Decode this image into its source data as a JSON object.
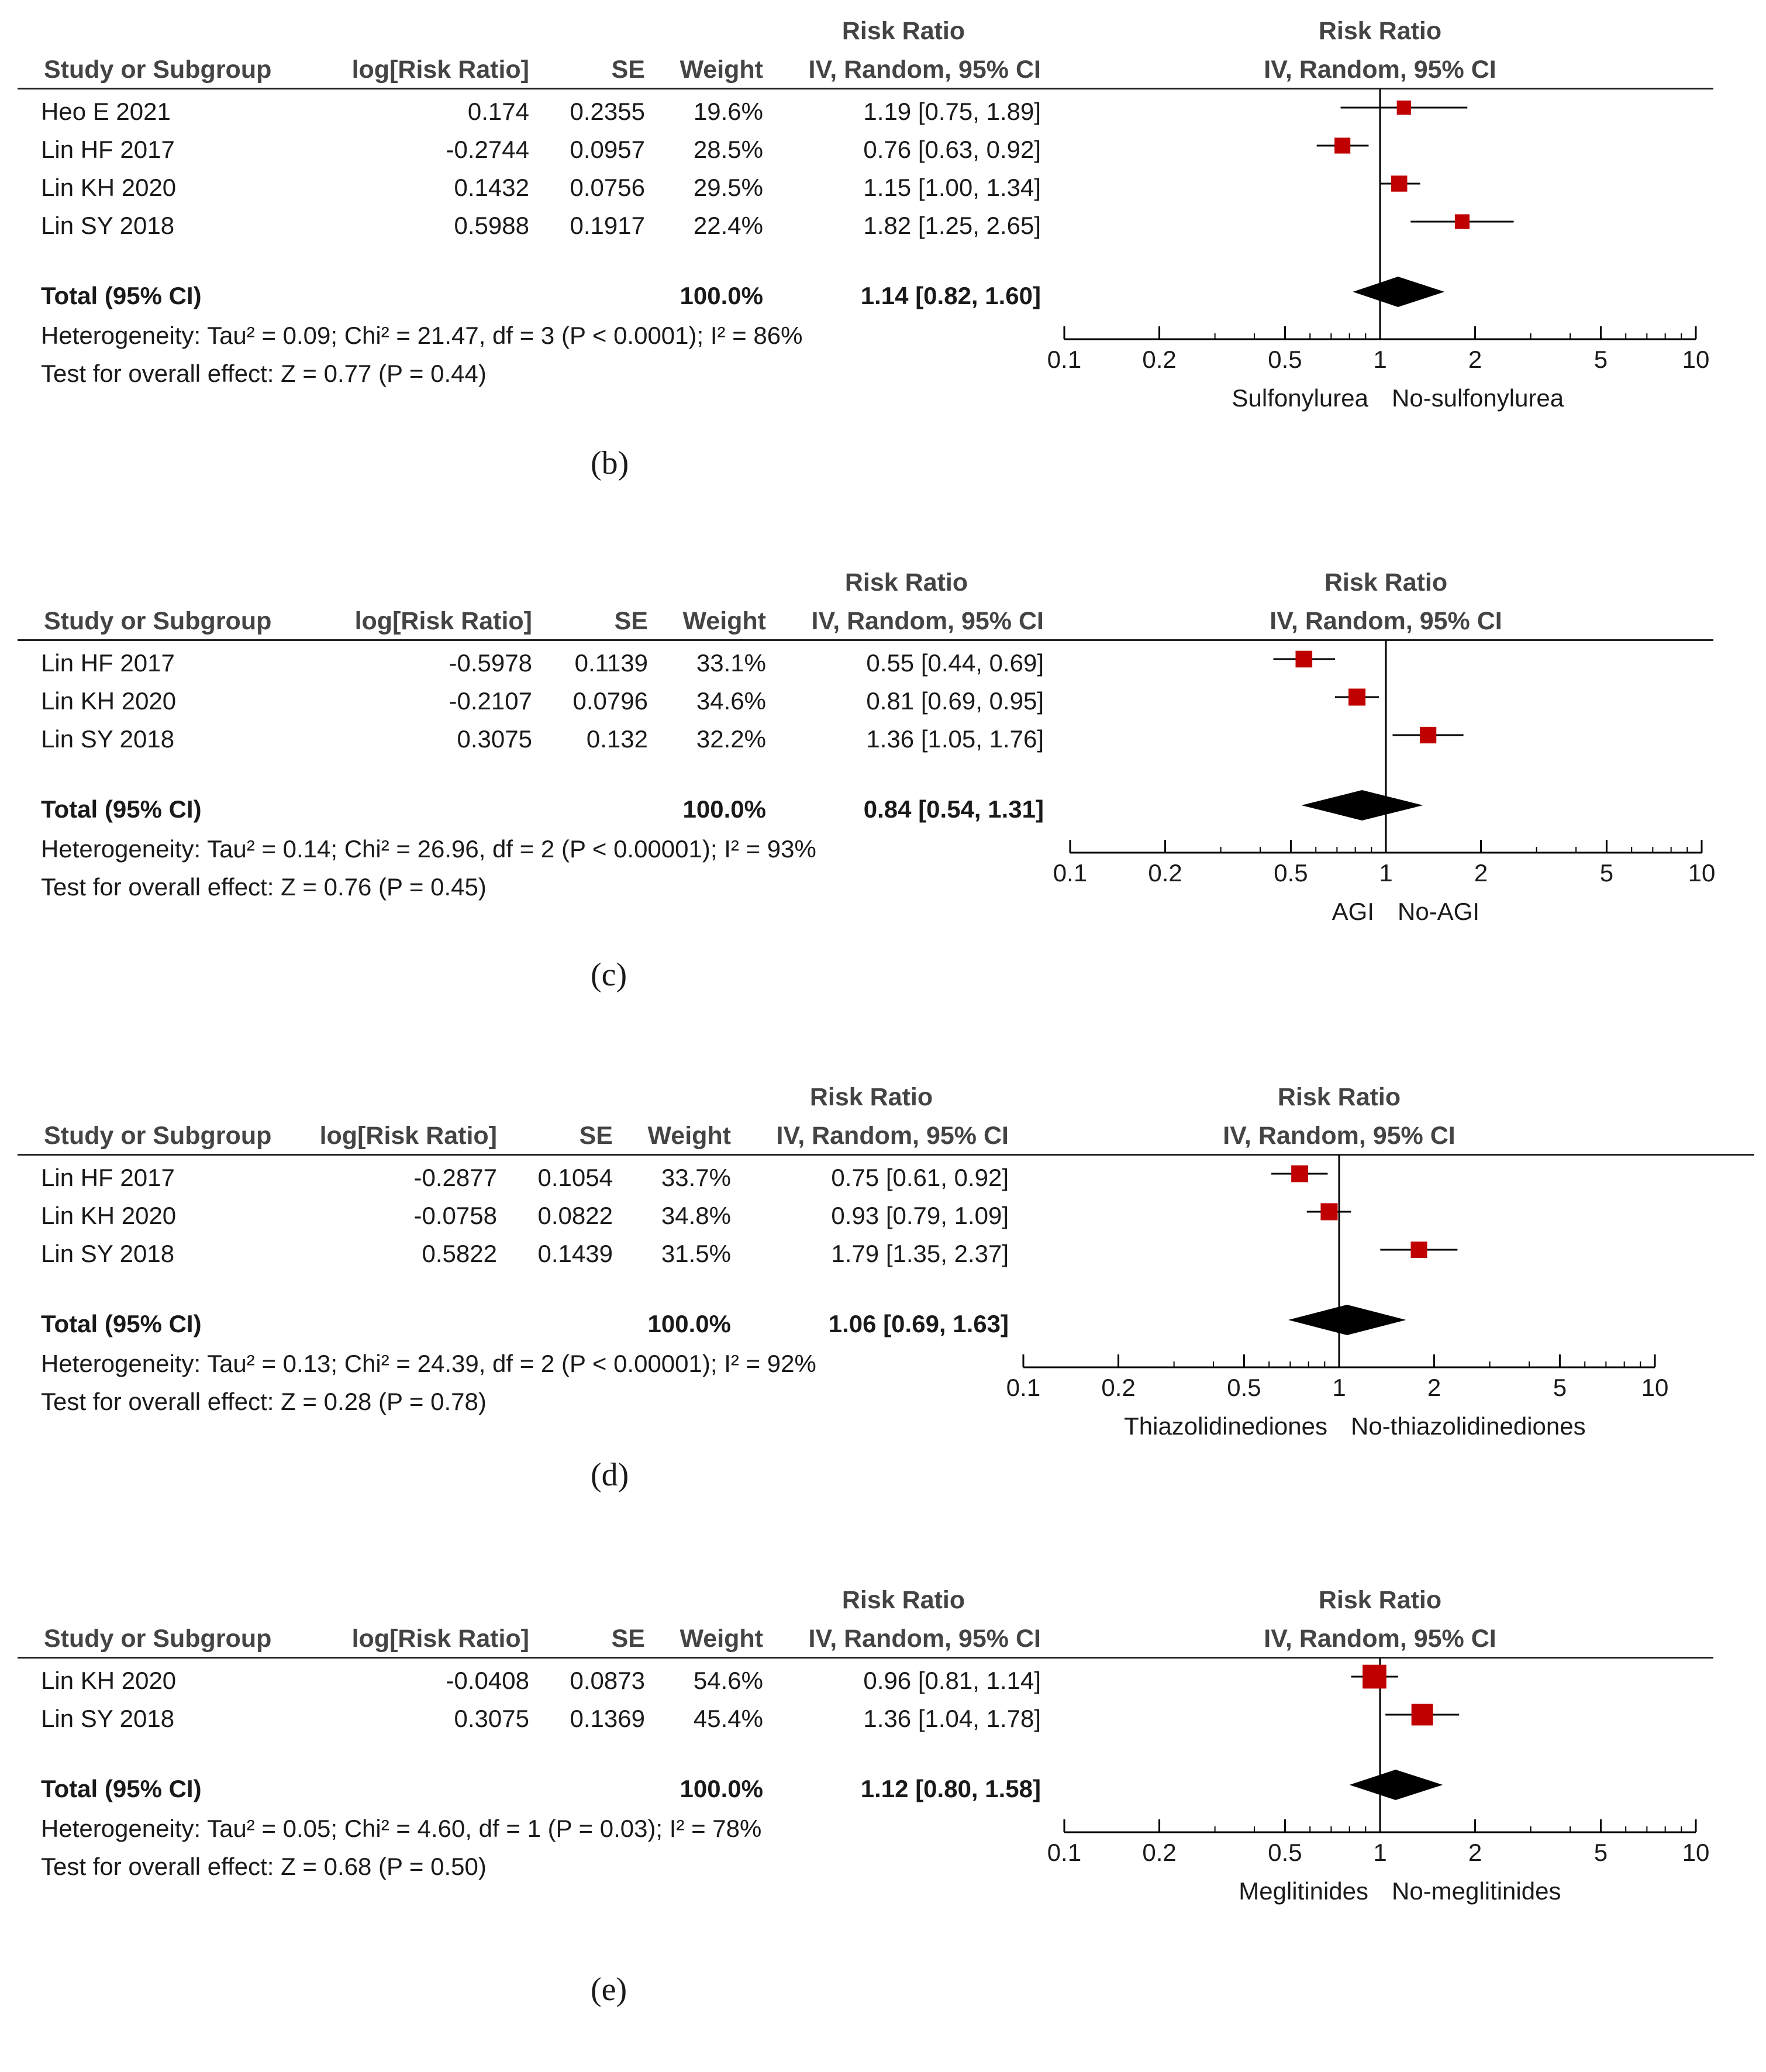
{
  "headers": {
    "study": "Study or Subgroup",
    "logrr": "log[Risk Ratio]",
    "se": "SE",
    "weight": "Weight",
    "rr_title": "Risk Ratio",
    "rr_method": "IV, Random, 95% CI",
    "plot_title": "Risk Ratio",
    "plot_method": "IV, Random, 95% CI"
  },
  "colors": {
    "marker": "#c00000",
    "diamond": "#000000",
    "text": "#1a1a1a",
    "header": "#444444"
  },
  "chart_data": [
    {
      "type": "forest",
      "label": "(b)",
      "xscale": "log",
      "xlim": [
        0.1,
        10
      ],
      "ticks": [
        {
          "v": 0.1,
          "t": "0.1"
        },
        {
          "v": 0.2,
          "t": "0.2"
        },
        {
          "v": 0.5,
          "t": "0.5"
        },
        {
          "v": 1,
          "t": "1"
        },
        {
          "v": 2,
          "t": "2"
        },
        {
          "v": 5,
          "t": "5"
        },
        {
          "v": 10,
          "t": "10"
        }
      ],
      "favours_left": "Sulfonylurea",
      "favours_right": "No-sulfonylurea",
      "studies": [
        {
          "name": "Heo E 2021",
          "logrr": "0.174",
          "se": "0.2355",
          "weight": "19.6%",
          "ci_text": "1.19 [0.75, 1.89]",
          "rr": 1.19,
          "lo": 0.75,
          "hi": 1.89,
          "w": 19.6
        },
        {
          "name": "Lin HF 2017",
          "logrr": "-0.2744",
          "se": "0.0957",
          "weight": "28.5%",
          "ci_text": "0.76 [0.63, 0.92]",
          "rr": 0.76,
          "lo": 0.63,
          "hi": 0.92,
          "w": 28.5
        },
        {
          "name": "Lin KH 2020",
          "logrr": "0.1432",
          "se": "0.0756",
          "weight": "29.5%",
          "ci_text": "1.15 [1.00, 1.34]",
          "rr": 1.15,
          "lo": 1.0,
          "hi": 1.34,
          "w": 29.5
        },
        {
          "name": "Lin SY 2018",
          "logrr": "0.5988",
          "se": "0.1917",
          "weight": "22.4%",
          "ci_text": "1.82 [1.25, 2.65]",
          "rr": 1.82,
          "lo": 1.25,
          "hi": 2.65,
          "w": 22.4
        }
      ],
      "total": {
        "label": "Total (95% CI)",
        "weight": "100.0%",
        "ci_text": "1.14 [0.82, 1.60]",
        "rr": 1.14,
        "lo": 0.82,
        "hi": 1.6
      },
      "heterogeneity": "Heterogeneity: Tau² = 0.09; Chi² = 21.47, df = 3 (P < 0.0001); I² = 86%",
      "overall": "Test for overall effect: Z = 0.77 (P = 0.44)"
    },
    {
      "type": "forest",
      "label": "(c)",
      "xscale": "log",
      "xlim": [
        0.1,
        10
      ],
      "ticks": [
        {
          "v": 0.1,
          "t": "0.1"
        },
        {
          "v": 0.2,
          "t": "0.2"
        },
        {
          "v": 0.5,
          "t": "0.5"
        },
        {
          "v": 1,
          "t": "1"
        },
        {
          "v": 2,
          "t": "2"
        },
        {
          "v": 5,
          "t": "5"
        },
        {
          "v": 10,
          "t": "10"
        }
      ],
      "favours_left": "AGI",
      "favours_right": "No-AGI",
      "studies": [
        {
          "name": "Lin HF 2017",
          "logrr": "-0.5978",
          "se": "0.1139",
          "weight": "33.1%",
          "ci_text": "0.55 [0.44, 0.69]",
          "rr": 0.55,
          "lo": 0.44,
          "hi": 0.69,
          "w": 33.1
        },
        {
          "name": "Lin KH 2020",
          "logrr": "-0.2107",
          "se": "0.0796",
          "weight": "34.6%",
          "ci_text": "0.81 [0.69, 0.95]",
          "rr": 0.81,
          "lo": 0.69,
          "hi": 0.95,
          "w": 34.6
        },
        {
          "name": "Lin SY 2018",
          "logrr": "0.3075",
          "se": "0.132",
          "weight": "32.2%",
          "ci_text": "1.36 [1.05, 1.76]",
          "rr": 1.36,
          "lo": 1.05,
          "hi": 1.76,
          "w": 32.2
        }
      ],
      "total": {
        "label": "Total (95% CI)",
        "weight": "100.0%",
        "ci_text": "0.84 [0.54, 1.31]",
        "rr": 0.84,
        "lo": 0.54,
        "hi": 1.31
      },
      "heterogeneity": "Heterogeneity: Tau² = 0.14; Chi² = 26.96, df = 2 (P < 0.00001); I² = 93%",
      "overall": "Test for overall effect: Z = 0.76 (P = 0.45)"
    },
    {
      "type": "forest",
      "label": "(d)",
      "xscale": "log",
      "xlim": [
        0.1,
        10
      ],
      "ticks": [
        {
          "v": 0.1,
          "t": "0.1"
        },
        {
          "v": 0.2,
          "t": "0.2"
        },
        {
          "v": 0.5,
          "t": "0.5"
        },
        {
          "v": 1,
          "t": "1"
        },
        {
          "v": 2,
          "t": "2"
        },
        {
          "v": 5,
          "t": "5"
        },
        {
          "v": 10,
          "t": "10"
        }
      ],
      "favours_left": "Thiazolidinediones",
      "favours_right": "No-thiazolidinediones",
      "studies": [
        {
          "name": "Lin HF 2017",
          "logrr": "-0.2877",
          "se": "0.1054",
          "weight": "33.7%",
          "ci_text": "0.75 [0.61, 0.92]",
          "rr": 0.75,
          "lo": 0.61,
          "hi": 0.92,
          "w": 33.7
        },
        {
          "name": "Lin KH 2020",
          "logrr": "-0.0758",
          "se": "0.0822",
          "weight": "34.8%",
          "ci_text": "0.93 [0.79, 1.09]",
          "rr": 0.93,
          "lo": 0.79,
          "hi": 1.09,
          "w": 34.8
        },
        {
          "name": "Lin SY 2018",
          "logrr": "0.5822",
          "se": "0.1439",
          "weight": "31.5%",
          "ci_text": "1.79 [1.35, 2.37]",
          "rr": 1.79,
          "lo": 1.35,
          "hi": 2.37,
          "w": 31.5
        }
      ],
      "total": {
        "label": "Total (95% CI)",
        "weight": "100.0%",
        "ci_text": "1.06 [0.69, 1.63]",
        "rr": 1.06,
        "lo": 0.69,
        "hi": 1.63
      },
      "heterogeneity": "Heterogeneity: Tau² = 0.13; Chi² = 24.39, df = 2 (P < 0.00001); I² = 92%",
      "overall": "Test for overall effect: Z = 0.28 (P = 0.78)"
    },
    {
      "type": "forest",
      "label": "(e)",
      "xscale": "log",
      "xlim": [
        0.1,
        10
      ],
      "ticks": [
        {
          "v": 0.1,
          "t": "0.1"
        },
        {
          "v": 0.2,
          "t": "0.2"
        },
        {
          "v": 0.5,
          "t": "0.5"
        },
        {
          "v": 1,
          "t": "1"
        },
        {
          "v": 2,
          "t": "2"
        },
        {
          "v": 5,
          "t": "5"
        },
        {
          "v": 10,
          "t": "10"
        }
      ],
      "favours_left": "Meglitinides",
      "favours_right": "No-meglitinides",
      "studies": [
        {
          "name": "Lin KH 2020",
          "logrr": "-0.0408",
          "se": "0.0873",
          "weight": "54.6%",
          "ci_text": "0.96 [0.81, 1.14]",
          "rr": 0.96,
          "lo": 0.81,
          "hi": 1.14,
          "w": 54.6
        },
        {
          "name": "Lin SY 2018",
          "logrr": "0.3075",
          "se": "0.1369",
          "weight": "45.4%",
          "ci_text": "1.36 [1.04, 1.78]",
          "rr": 1.36,
          "lo": 1.04,
          "hi": 1.78,
          "w": 45.4
        }
      ],
      "total": {
        "label": "Total (95% CI)",
        "weight": "100.0%",
        "ci_text": "1.12 [0.80, 1.58]",
        "rr": 1.12,
        "lo": 0.8,
        "hi": 1.58
      },
      "heterogeneity": "Heterogeneity: Tau² = 0.05; Chi² = 4.60, df = 1 (P = 0.03); I² = 78%",
      "overall": "Test for overall effect: Z = 0.68 (P = 0.50)"
    }
  ]
}
